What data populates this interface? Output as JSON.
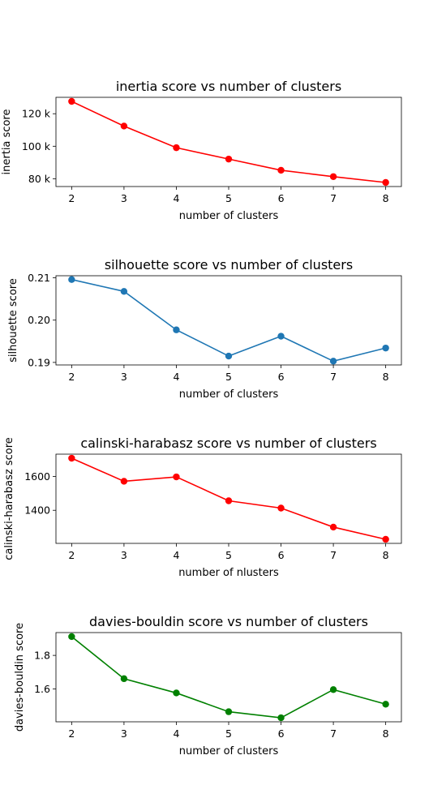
{
  "chart_data": [
    {
      "type": "line",
      "title": "inertia score vs number of clusters",
      "xlabel": "number of clusters",
      "ylabel": "inertia score",
      "color": "#ff0000",
      "x": [
        2,
        3,
        4,
        5,
        6,
        7,
        8
      ],
      "y": [
        127600,
        112400,
        99100,
        92100,
        85200,
        81300,
        77700
      ],
      "xticks": [
        2,
        3,
        4,
        5,
        6,
        7,
        8
      ],
      "yticks": [
        80000,
        100000,
        120000
      ],
      "ytick_labels": [
        "80 k",
        "100 k",
        "120 k"
      ],
      "ylim": [
        75200,
        130100
      ],
      "xlim": [
        1.7,
        8.3
      ],
      "grid": false,
      "legend": "none"
    },
    {
      "type": "line",
      "title": "silhouette score vs number of clusters",
      "xlabel": "number of clusters",
      "ylabel": "silhouette score",
      "color": "#1f77b4",
      "x": [
        2,
        3,
        4,
        5,
        6,
        7,
        8
      ],
      "y": [
        0.2096,
        0.2068,
        0.1977,
        0.1915,
        0.1962,
        0.1903,
        0.1934
      ],
      "xticks": [
        2,
        3,
        4,
        5,
        6,
        7,
        8
      ],
      "yticks": [
        0.19,
        0.2,
        0.21
      ],
      "ytick_labels": [
        "0.19",
        "0.20",
        "0.21"
      ],
      "ylim": [
        0.1894,
        0.2105
      ],
      "xlim": [
        1.7,
        8.3
      ],
      "grid": false,
      "legend": "none"
    },
    {
      "type": "line",
      "title": "calinski-harabasz score vs number of clusters",
      "xlabel": "number of nlusters",
      "ylabel": "calinski-harabasz score",
      "color": "#ff0000",
      "x": [
        2,
        3,
        4,
        5,
        6,
        7,
        8
      ],
      "y": [
        1707,
        1571,
        1597,
        1456,
        1413,
        1301,
        1229
      ],
      "xticks": [
        2,
        3,
        4,
        5,
        6,
        7,
        8
      ],
      "yticks": [
        1400,
        1600
      ],
      "ytick_labels": [
        "1400",
        "1600"
      ],
      "ylim": [
        1205,
        1731
      ],
      "xlim": [
        1.7,
        8.3
      ],
      "grid": false,
      "legend": "none"
    },
    {
      "type": "line",
      "title": "davies-bouldin score vs number of clusters",
      "xlabel": "number of clusters",
      "ylabel": "davies-bouldin score",
      "color": "#008000",
      "x": [
        2,
        3,
        4,
        5,
        6,
        7,
        8
      ],
      "y": [
        1.912,
        1.661,
        1.576,
        1.464,
        1.428,
        1.596,
        1.509
      ],
      "xticks": [
        2,
        3,
        4,
        5,
        6,
        7,
        8
      ],
      "yticks": [
        1.6,
        1.8
      ],
      "ytick_labels": [
        "1.6",
        "1.8"
      ],
      "ylim": [
        1.404,
        1.936
      ],
      "xlim": [
        1.7,
        8.3
      ],
      "grid": false,
      "legend": "none"
    }
  ]
}
